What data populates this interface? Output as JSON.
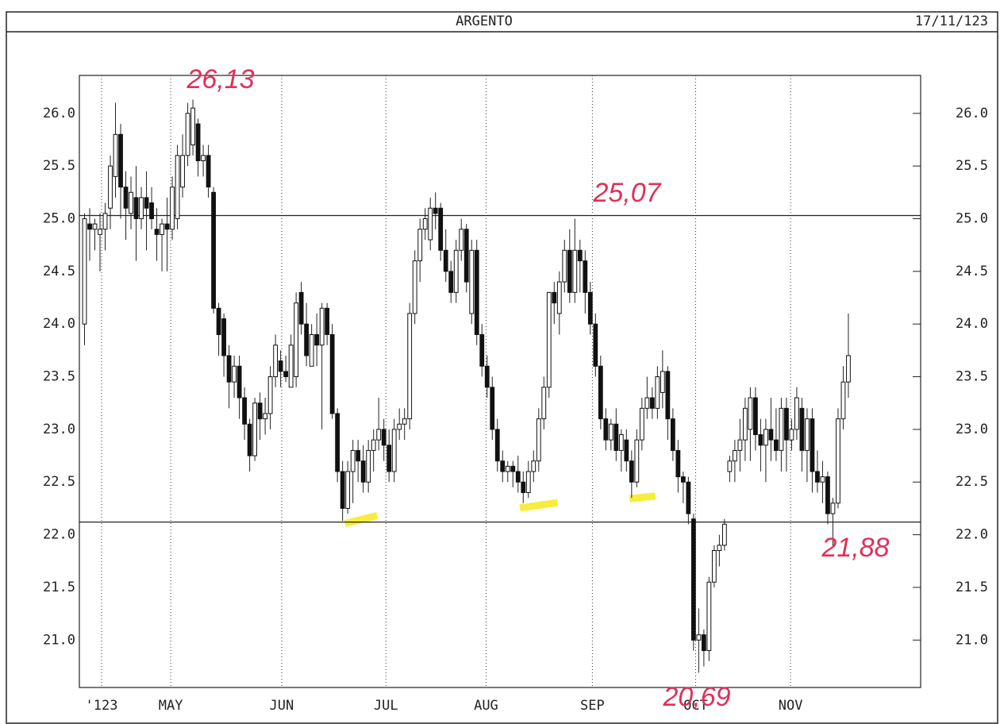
{
  "chart_data": {
    "type": "candlestick",
    "title": "ARGENTO",
    "date": "17/11/123",
    "ohlc": [
      [
        24.0,
        25.05,
        23.8,
        25.0
      ],
      [
        24.95,
        25.1,
        24.6,
        24.9
      ],
      [
        24.9,
        25.0,
        24.7,
        24.95
      ],
      [
        24.85,
        25.05,
        24.5,
        24.9
      ],
      [
        24.9,
        25.15,
        24.7,
        25.05
      ],
      [
        25.1,
        25.6,
        24.9,
        25.5
      ],
      [
        25.4,
        26.1,
        25.2,
        25.8
      ],
      [
        25.8,
        25.9,
        25.0,
        25.3
      ],
      [
        25.3,
        25.45,
        24.8,
        25.1
      ],
      [
        25.05,
        25.4,
        24.9,
        25.25
      ],
      [
        25.2,
        25.5,
        24.6,
        25.0
      ],
      [
        25.0,
        25.3,
        24.9,
        25.2
      ],
      [
        25.2,
        25.45,
        24.7,
        25.1
      ],
      [
        25.15,
        25.3,
        24.9,
        25.0
      ],
      [
        24.9,
        25.1,
        24.6,
        24.85
      ],
      [
        24.85,
        25.0,
        24.5,
        24.95
      ],
      [
        24.95,
        25.2,
        24.5,
        24.9
      ],
      [
        24.9,
        25.4,
        24.8,
        25.3
      ],
      [
        25.0,
        25.7,
        24.9,
        25.6
      ],
      [
        25.3,
        25.8,
        25.2,
        25.6
      ],
      [
        25.6,
        26.1,
        25.5,
        26.0
      ],
      [
        25.7,
        26.13,
        25.6,
        26.05
      ],
      [
        25.9,
        25.95,
        25.4,
        25.55
      ],
      [
        25.55,
        25.7,
        25.4,
        25.6
      ],
      [
        25.6,
        25.7,
        25.2,
        25.3
      ],
      [
        25.25,
        25.3,
        24.1,
        24.15
      ],
      [
        24.15,
        24.2,
        23.7,
        23.9
      ],
      [
        24.05,
        24.1,
        23.5,
        23.7
      ],
      [
        23.7,
        23.8,
        23.2,
        23.45
      ],
      [
        23.45,
        23.7,
        23.3,
        23.6
      ],
      [
        23.6,
        23.7,
        23.1,
        23.3
      ],
      [
        23.3,
        23.4,
        22.9,
        23.05
      ],
      [
        23.05,
        23.1,
        22.6,
        22.75
      ],
      [
        22.75,
        23.3,
        22.7,
        23.25
      ],
      [
        23.25,
        23.35,
        22.9,
        23.1
      ],
      [
        23.1,
        23.3,
        22.95,
        23.15
      ],
      [
        23.15,
        23.6,
        23.0,
        23.5
      ],
      [
        23.5,
        23.9,
        23.4,
        23.8
      ],
      [
        23.65,
        23.75,
        23.4,
        23.55
      ],
      [
        23.55,
        23.7,
        23.45,
        23.5
      ],
      [
        23.4,
        23.9,
        23.4,
        23.8
      ],
      [
        23.5,
        24.3,
        23.4,
        24.2
      ],
      [
        24.3,
        24.4,
        23.9,
        24.0
      ],
      [
        24.0,
        24.2,
        23.6,
        23.7
      ],
      [
        23.6,
        24.0,
        23.6,
        23.9
      ],
      [
        23.9,
        24.1,
        23.6,
        23.8
      ],
      [
        23.8,
        24.2,
        23.0,
        24.15
      ],
      [
        24.15,
        24.2,
        23.8,
        23.9
      ],
      [
        23.9,
        24.0,
        23.1,
        23.15
      ],
      [
        23.15,
        23.2,
        22.5,
        22.6
      ],
      [
        22.6,
        22.7,
        22.13,
        22.25
      ],
      [
        22.25,
        22.7,
        22.2,
        22.6
      ],
      [
        22.6,
        22.9,
        22.3,
        22.8
      ],
      [
        22.8,
        22.9,
        22.5,
        22.7
      ],
      [
        22.7,
        22.85,
        22.4,
        22.5
      ],
      [
        22.5,
        22.9,
        22.4,
        22.8
      ],
      [
        22.8,
        23.0,
        22.6,
        22.9
      ],
      [
        22.9,
        23.3,
        22.8,
        23.0
      ],
      [
        23.0,
        23.1,
        22.7,
        22.85
      ],
      [
        22.85,
        23.0,
        22.5,
        22.6
      ],
      [
        22.6,
        23.1,
        22.5,
        23.0
      ],
      [
        23.0,
        23.2,
        22.9,
        23.05
      ],
      [
        23.05,
        23.2,
        22.9,
        23.1
      ],
      [
        23.1,
        24.2,
        23.0,
        24.1
      ],
      [
        24.1,
        24.7,
        24.0,
        24.6
      ],
      [
        24.6,
        25.0,
        24.4,
        24.9
      ],
      [
        24.9,
        25.1,
        24.8,
        25.0
      ],
      [
        24.8,
        25.2,
        24.7,
        25.1
      ],
      [
        25.1,
        25.25,
        24.9,
        25.05
      ],
      [
        25.1,
        25.15,
        24.6,
        24.7
      ],
      [
        24.7,
        24.9,
        24.4,
        24.5
      ],
      [
        24.5,
        24.6,
        24.2,
        24.3
      ],
      [
        24.3,
        24.8,
        24.2,
        24.7
      ],
      [
        24.7,
        25.0,
        24.6,
        24.9
      ],
      [
        24.9,
        24.95,
        24.3,
        24.4
      ],
      [
        24.1,
        24.8,
        24.0,
        24.7
      ],
      [
        24.7,
        24.8,
        23.8,
        23.9
      ],
      [
        23.9,
        24.0,
        23.5,
        23.6
      ],
      [
        23.6,
        23.7,
        23.3,
        23.4
      ],
      [
        23.4,
        23.5,
        22.9,
        23.0
      ],
      [
        23.0,
        23.1,
        22.6,
        22.7
      ],
      [
        22.7,
        22.8,
        22.5,
        22.6
      ],
      [
        22.6,
        22.7,
        22.5,
        22.65
      ],
      [
        22.65,
        22.7,
        22.45,
        22.6
      ],
      [
        22.6,
        22.75,
        22.4,
        22.5
      ],
      [
        22.5,
        22.6,
        22.3,
        22.4
      ],
      [
        22.4,
        22.7,
        22.35,
        22.6
      ],
      [
        22.6,
        22.8,
        22.5,
        22.7
      ],
      [
        22.7,
        23.2,
        22.6,
        23.1
      ],
      [
        23.1,
        23.5,
        23.0,
        23.4
      ],
      [
        23.4,
        24.3,
        23.3,
        24.3
      ],
      [
        24.3,
        24.4,
        24.0,
        24.2
      ],
      [
        24.1,
        24.5,
        23.9,
        24.4
      ],
      [
        24.4,
        24.8,
        24.3,
        24.7
      ],
      [
        24.7,
        24.9,
        24.2,
        24.3
      ],
      [
        24.3,
        25.0,
        24.2,
        24.7
      ],
      [
        24.7,
        24.8,
        24.3,
        24.6
      ],
      [
        24.6,
        24.7,
        24.1,
        24.3
      ],
      [
        24.3,
        24.4,
        23.9,
        24.0
      ],
      [
        24.0,
        24.1,
        23.5,
        23.6
      ],
      [
        23.6,
        23.7,
        23.0,
        23.1
      ],
      [
        23.1,
        23.2,
        22.8,
        22.9
      ],
      [
        22.9,
        23.1,
        22.8,
        23.05
      ],
      [
        23.05,
        23.2,
        22.7,
        22.8
      ],
      [
        22.8,
        23.0,
        22.6,
        22.95
      ],
      [
        22.9,
        23.0,
        22.6,
        22.7
      ],
      [
        22.7,
        22.8,
        22.35,
        22.5
      ],
      [
        22.5,
        23.0,
        22.45,
        22.9
      ],
      [
        22.9,
        23.3,
        22.8,
        23.2
      ],
      [
        23.2,
        23.5,
        23.1,
        23.3
      ],
      [
        23.3,
        23.4,
        23.1,
        23.2
      ],
      [
        23.2,
        23.6,
        23.1,
        23.5
      ],
      [
        23.35,
        23.75,
        23.2,
        23.55
      ],
      [
        23.55,
        23.6,
        22.9,
        23.1
      ],
      [
        23.1,
        23.2,
        22.7,
        22.8
      ],
      [
        22.8,
        22.9,
        22.4,
        22.55
      ],
      [
        22.55,
        22.6,
        22.3,
        22.5
      ],
      [
        22.5,
        22.55,
        22.1,
        22.2
      ],
      [
        22.15,
        22.2,
        20.9,
        21.0
      ],
      [
        21.0,
        21.3,
        20.69,
        21.05
      ],
      [
        21.05,
        21.1,
        20.75,
        20.9
      ],
      [
        20.9,
        21.6,
        20.8,
        21.55
      ],
      [
        21.55,
        21.9,
        21.5,
        21.85
      ],
      [
        21.85,
        22.0,
        21.7,
        21.9
      ],
      [
        21.9,
        22.15,
        21.85,
        22.1
      ],
      [
        22.6,
        22.75,
        22.5,
        22.7
      ],
      [
        22.7,
        22.9,
        22.5,
        22.8
      ],
      [
        22.8,
        23.1,
        22.6,
        22.9
      ],
      [
        22.9,
        23.3,
        22.7,
        23.2
      ],
      [
        23.0,
        23.4,
        22.7,
        23.3
      ],
      [
        23.3,
        23.4,
        22.8,
        22.95
      ],
      [
        22.95,
        23.1,
        22.6,
        22.85
      ],
      [
        22.85,
        23.1,
        22.5,
        23.0
      ],
      [
        23.0,
        23.3,
        22.7,
        22.9
      ],
      [
        22.9,
        23.2,
        22.7,
        22.8
      ],
      [
        22.8,
        23.3,
        22.6,
        23.2
      ],
      [
        23.2,
        23.3,
        22.6,
        22.9
      ],
      [
        22.9,
        23.1,
        22.8,
        23.0
      ],
      [
        23.0,
        23.4,
        22.9,
        23.3
      ],
      [
        23.2,
        23.3,
        22.6,
        22.8
      ],
      [
        22.8,
        23.2,
        22.5,
        23.1
      ],
      [
        23.1,
        23.2,
        22.4,
        22.6
      ],
      [
        22.6,
        22.8,
        22.4,
        22.5
      ],
      [
        22.5,
        22.7,
        22.3,
        22.55
      ],
      [
        22.55,
        22.6,
        22.1,
        22.2
      ],
      [
        22.2,
        22.35,
        21.88,
        22.3
      ],
      [
        22.3,
        23.2,
        22.25,
        23.1
      ],
      [
        23.1,
        23.6,
        23.0,
        23.45
      ],
      [
        23.45,
        24.1,
        23.3,
        23.7
      ]
    ],
    "xlim": [
      -1,
      162
    ],
    "xticks": [
      {
        "value": 3.3,
        "label": "'123"
      },
      {
        "value": 16.7,
        "label": "MAY"
      },
      {
        "value": 38.2,
        "label": "JUN"
      },
      {
        "value": 58.4,
        "label": "JUL"
      },
      {
        "value": 77.8,
        "label": "AUG"
      },
      {
        "value": 98.4,
        "label": "SEP"
      },
      {
        "value": 118.4,
        "label": "OCT"
      },
      {
        "value": 136.8,
        "label": "NOV"
      }
    ],
    "ylim": [
      20.55,
      26.36
    ],
    "yticks": [
      {
        "value": 21,
        "label": "21.0"
      },
      21.5,
      {
        "value": 22,
        "label": "22.0"
      },
      22.5,
      {
        "value": 23,
        "label": "23.0"
      },
      23.5,
      {
        "value": 24,
        "label": "24.0"
      },
      24.5,
      {
        "value": 25,
        "label": "25.0"
      },
      25.5,
      {
        "value": 26,
        "label": "26.0"
      }
    ],
    "hlines": [
      25.03,
      22.12
    ],
    "annotations": [
      "26,13",
      "25,07",
      "21,88",
      "20,69"
    ]
  }
}
